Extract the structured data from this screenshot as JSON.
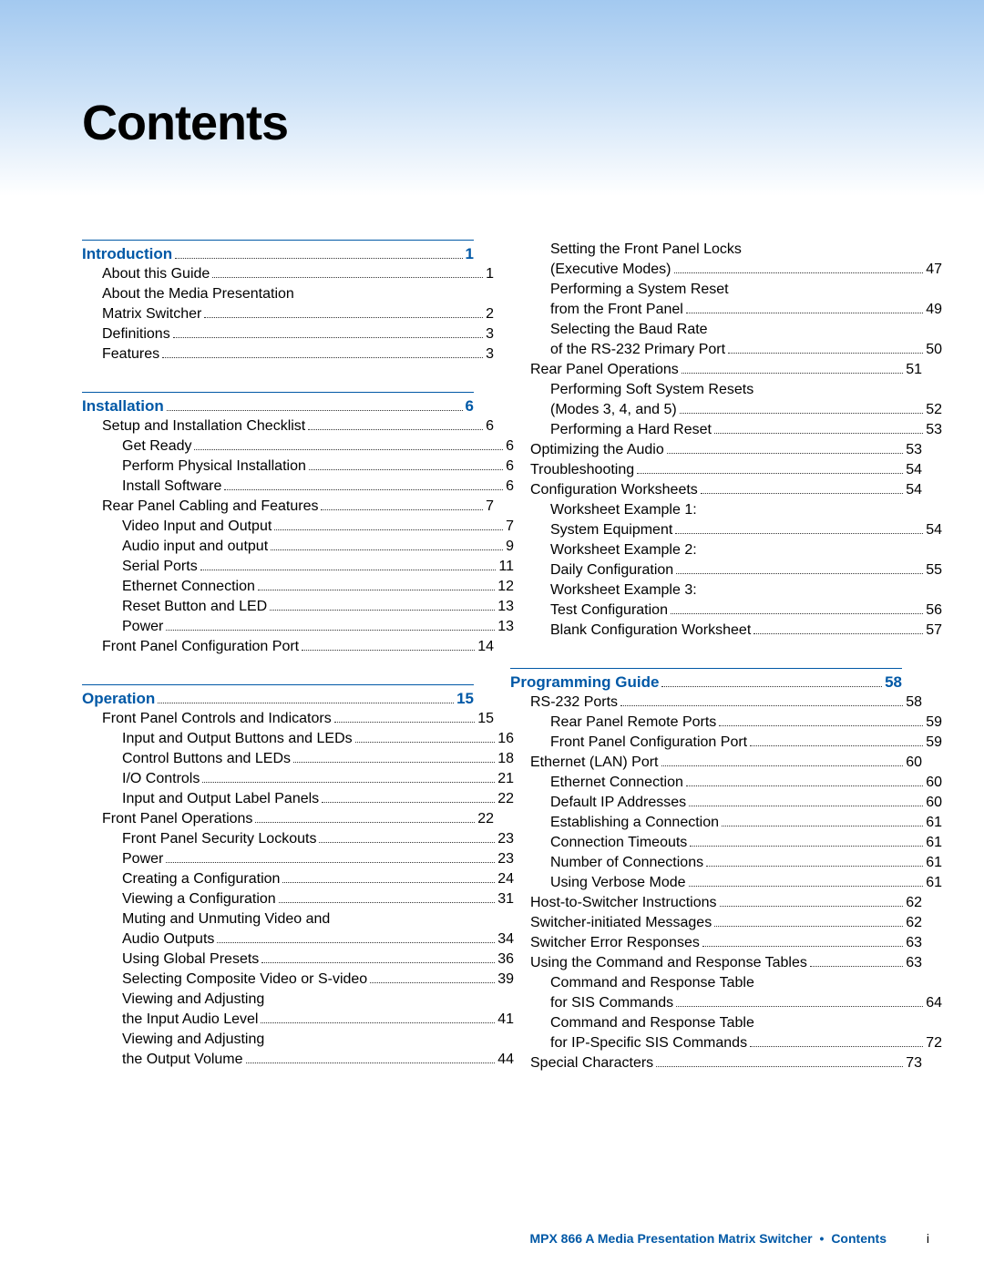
{
  "title": "Contents",
  "footer": {
    "product": "MPX 866 A Media Presentation Matrix Switcher",
    "section": "Contents",
    "page": "i"
  },
  "colors": {
    "accent": "#0058a6",
    "gradient_top": "#a3c9f0",
    "gradient_mid": "#cde2f7",
    "gradient_bottom": "#ffffff",
    "text": "#000000"
  },
  "left": [
    {
      "type": "section",
      "label": "Introduction",
      "page": "1",
      "entries": [
        {
          "indent": 1,
          "label": "About this Guide",
          "page": "1"
        },
        {
          "indent": 1,
          "label": "About the Media Presentation"
        },
        {
          "indent": 1,
          "label": " Matrix Switcher",
          "page": "2"
        },
        {
          "indent": 1,
          "label": "Definitions",
          "page": "3"
        },
        {
          "indent": 1,
          "label": "Features",
          "page": "3"
        }
      ]
    },
    {
      "type": "section",
      "label": "Installation",
      "page": "6",
      "entries": [
        {
          "indent": 1,
          "label": "Setup and Installation Checklist",
          "page": "6"
        },
        {
          "indent": 2,
          "label": "Get Ready",
          "page": "6"
        },
        {
          "indent": 2,
          "label": "Perform Physical Installation",
          "page": "6"
        },
        {
          "indent": 2,
          "label": "Install Software",
          "page": "6"
        },
        {
          "indent": 1,
          "label": "Rear Panel Cabling and Features",
          "page": "7"
        },
        {
          "indent": 2,
          "label": "Video Input and Output",
          "page": "7"
        },
        {
          "indent": 2,
          "label": "Audio input and output",
          "page": "9"
        },
        {
          "indent": 2,
          "label": "Serial Ports",
          "page": "11"
        },
        {
          "indent": 2,
          "label": "Ethernet Connection",
          "page": "12"
        },
        {
          "indent": 2,
          "label": "Reset Button and LED",
          "page": "13"
        },
        {
          "indent": 2,
          "label": "Power",
          "page": "13"
        },
        {
          "indent": 1,
          "label": "Front Panel Configuration Port",
          "page": "14"
        }
      ]
    },
    {
      "type": "section",
      "label": "Operation",
      "page": "15",
      "entries": [
        {
          "indent": 1,
          "label": "Front Panel Controls and Indicators",
          "page": "15"
        },
        {
          "indent": 2,
          "label": "Input and Output Buttons and LEDs",
          "page": "16"
        },
        {
          "indent": 2,
          "label": "Control Buttons and LEDs",
          "page": "18"
        },
        {
          "indent": 2,
          "label": "I/O Controls",
          "page": "21"
        },
        {
          "indent": 2,
          "label": "Input and Output Label Panels",
          "page": "22"
        },
        {
          "indent": 1,
          "label": "Front Panel Operations",
          "page": "22"
        },
        {
          "indent": 2,
          "label": "Front Panel Security Lockouts",
          "page": "23"
        },
        {
          "indent": 2,
          "label": "Power",
          "page": "23"
        },
        {
          "indent": 2,
          "label": "Creating a Configuration",
          "page": "24"
        },
        {
          "indent": 2,
          "label": "Viewing a Configuration",
          "page": "31"
        },
        {
          "indent": 2,
          "label": "Muting and Unmuting Video and"
        },
        {
          "indent": 2,
          "label": " Audio Outputs",
          "page": "34"
        },
        {
          "indent": 2,
          "label": "Using Global Presets",
          "page": "36"
        },
        {
          "indent": 2,
          "label": "Selecting Composite Video or S-video",
          "page": "39"
        },
        {
          "indent": 2,
          "label": "Viewing and Adjusting"
        },
        {
          "indent": 2,
          "label": " the Input Audio Level",
          "page": "41"
        },
        {
          "indent": 2,
          "label": "Viewing and Adjusting"
        },
        {
          "indent": 2,
          "label": " the Output Volume",
          "page": "44"
        }
      ]
    }
  ],
  "right": [
    {
      "type": "continuation",
      "entries": [
        {
          "indent": 2,
          "label": "Setting the Front Panel Locks"
        },
        {
          "indent": 2,
          "label": " (Executive Modes)",
          "page": "47"
        },
        {
          "indent": 2,
          "label": "Performing a System Reset"
        },
        {
          "indent": 2,
          "label": " from the Front Panel",
          "page": "49"
        },
        {
          "indent": 2,
          "label": "Selecting the Baud Rate"
        },
        {
          "indent": 2,
          "label": " of the RS-232 Primary Port",
          "page": "50"
        },
        {
          "indent": 1,
          "label": "Rear Panel Operations",
          "page": "51"
        },
        {
          "indent": 2,
          "label": "Performing Soft System Resets"
        },
        {
          "indent": 2,
          "label": " (Modes 3, 4, and 5)",
          "page": "52"
        },
        {
          "indent": 2,
          "label": "Performing a Hard Reset",
          "page": "53"
        },
        {
          "indent": 1,
          "label": "Optimizing the Audio",
          "page": "53"
        },
        {
          "indent": 1,
          "label": "Troubleshooting",
          "page": "54"
        },
        {
          "indent": 1,
          "label": "Configuration Worksheets",
          "page": "54"
        },
        {
          "indent": 2,
          "label": "Worksheet Example 1:"
        },
        {
          "indent": 2,
          "label": " System Equipment",
          "page": "54"
        },
        {
          "indent": 2,
          "label": "Worksheet Example 2:"
        },
        {
          "indent": 2,
          "label": " Daily Configuration",
          "page": "55"
        },
        {
          "indent": 2,
          "label": "Worksheet Example 3:"
        },
        {
          "indent": 2,
          "label": " Test Configuration",
          "page": "56"
        },
        {
          "indent": 2,
          "label": "Blank Configuration Worksheet",
          "page": "57"
        }
      ]
    },
    {
      "type": "section",
      "label": "Programming Guide",
      "page": "58",
      "entries": [
        {
          "indent": 1,
          "label": "RS-232 Ports",
          "page": "58"
        },
        {
          "indent": 2,
          "label": "Rear Panel Remote Ports",
          "page": "59"
        },
        {
          "indent": 2,
          "label": "Front Panel Configuration Port",
          "page": "59"
        },
        {
          "indent": 1,
          "label": "Ethernet (LAN) Port",
          "page": "60"
        },
        {
          "indent": 2,
          "label": "Ethernet Connection",
          "page": "60"
        },
        {
          "indent": 2,
          "label": "Default IP Addresses",
          "page": "60"
        },
        {
          "indent": 2,
          "label": "Establishing a Connection",
          "page": "61"
        },
        {
          "indent": 2,
          "label": "Connection Timeouts",
          "page": "61"
        },
        {
          "indent": 2,
          "label": "Number of Connections",
          "page": "61"
        },
        {
          "indent": 2,
          "label": "Using Verbose Mode",
          "page": "61"
        },
        {
          "indent": 1,
          "label": "Host-to-Switcher Instructions",
          "page": "62"
        },
        {
          "indent": 1,
          "label": "Switcher-initiated Messages",
          "page": "62"
        },
        {
          "indent": 1,
          "label": "Switcher Error Responses",
          "page": "63"
        },
        {
          "indent": 1,
          "label": "Using the Command and Response Tables",
          "page": "63"
        },
        {
          "indent": 2,
          "label": "Command and Response Table"
        },
        {
          "indent": 2,
          "label": " for SIS Commands",
          "page": "64"
        },
        {
          "indent": 2,
          "label": "Command and Response Table"
        },
        {
          "indent": 2,
          "label": " for IP-Specific SIS Commands",
          "page": "72"
        },
        {
          "indent": 1,
          "label": "Special Characters",
          "page": "73"
        }
      ]
    }
  ]
}
